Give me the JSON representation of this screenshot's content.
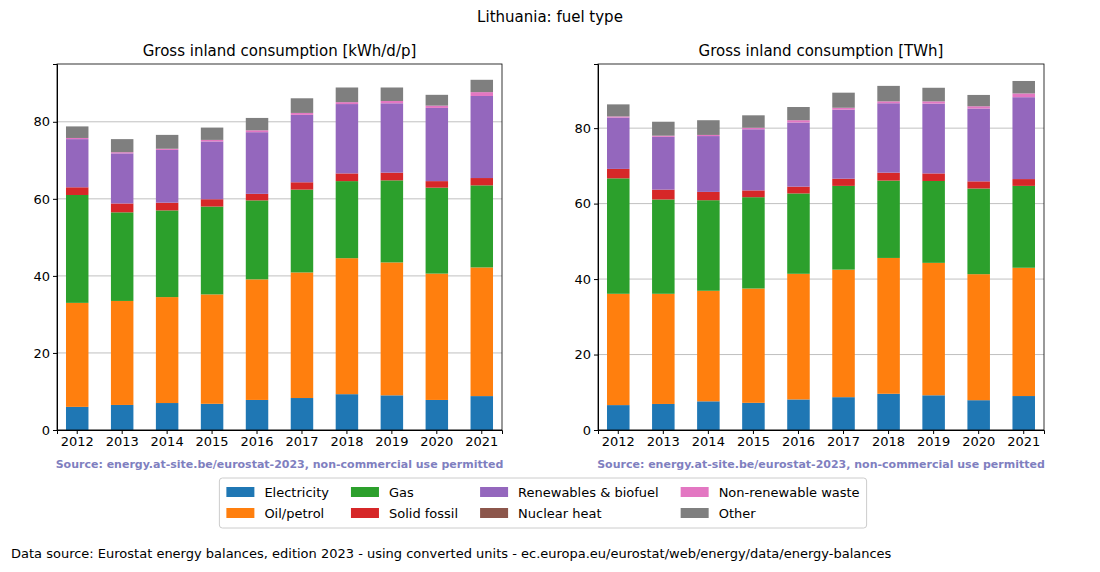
{
  "title": "Lithuania: fuel type",
  "caption": "Data source: Eurostat energy balances, edition 2023 - using converted units - ec.europa.eu/eurostat/web/energy/data/energy-balances",
  "chart_data": [
    {
      "type": "bar",
      "stacked": true,
      "grid": true,
      "legend": "bottom",
      "title": "Gross inland consumption [kWh/d/p]",
      "annotations": [
        "Source: energy.at-site.be/eurostat-2023, non-commercial use permitted"
      ],
      "categories": [
        "2012",
        "2013",
        "2014",
        "2015",
        "2016",
        "2017",
        "2018",
        "2019",
        "2020",
        "2021"
      ],
      "ylim": [
        0,
        95
      ],
      "yticks": [
        0,
        20,
        40,
        60,
        80
      ],
      "series": [
        {
          "name": "Electricity",
          "color": "#1f77b4",
          "values": [
            6,
            6.5,
            7,
            6.8,
            7.8,
            8.3,
            9.3,
            9,
            7.8,
            8.8
          ]
        },
        {
          "name": "Oil/petrol",
          "color": "#ff7f0e",
          "values": [
            27,
            27,
            27.5,
            28.4,
            31.3,
            32.6,
            35.3,
            34.5,
            32.8,
            33.4
          ]
        },
        {
          "name": "Gas",
          "color": "#2ca02c",
          "values": [
            28,
            23,
            22.5,
            22.8,
            20.5,
            21.5,
            20,
            21.3,
            22.3,
            21.3
          ]
        },
        {
          "name": "Solid fossil",
          "color": "#d62728",
          "values": [
            2,
            2.3,
            2,
            1.9,
            1.7,
            1.9,
            2,
            2,
            1.7,
            1.9
          ]
        },
        {
          "name": "Renewables & biofuel",
          "color": "#9467bd",
          "values": [
            12.5,
            13,
            13.7,
            15,
            16,
            17.5,
            18,
            18,
            19,
            21.3
          ]
        },
        {
          "name": "Nuclear heat",
          "color": "#8c564b",
          "values": [
            0,
            0,
            0,
            0,
            0,
            0,
            0,
            0,
            0,
            0
          ]
        },
        {
          "name": "Non-renewable waste",
          "color": "#e377c2",
          "values": [
            0.3,
            0.3,
            0.3,
            0.4,
            0.5,
            0.5,
            0.5,
            0.6,
            0.6,
            1
          ]
        },
        {
          "name": "Other",
          "color": "#7f7f7f",
          "values": [
            3,
            3.4,
            3.6,
            3.2,
            3.2,
            3.8,
            3.8,
            3.5,
            2.8,
            3.2
          ]
        }
      ]
    },
    {
      "type": "bar",
      "stacked": true,
      "grid": true,
      "title": "Gross inland consumption [TWh]",
      "annotations": [
        "Source: energy.at-site.be/eurostat-2023, non-commercial use permitted"
      ],
      "categories": [
        "2012",
        "2013",
        "2014",
        "2015",
        "2016",
        "2017",
        "2018",
        "2019",
        "2020",
        "2021"
      ],
      "ylim": [
        0,
        97
      ],
      "yticks": [
        0,
        20,
        40,
        60,
        80
      ],
      "series": [
        {
          "name": "Electricity",
          "color": "#1f77b4",
          "values": [
            6.6,
            6.9,
            7.6,
            7.2,
            8.1,
            8.7,
            9.6,
            9.2,
            7.9,
            9
          ]
        },
        {
          "name": "Oil/petrol",
          "color": "#ff7f0e",
          "values": [
            29.5,
            29.2,
            29.3,
            30.3,
            33.3,
            33.8,
            36,
            35.1,
            33.4,
            34
          ]
        },
        {
          "name": "Gas",
          "color": "#2ca02c",
          "values": [
            30.6,
            25,
            24,
            24.2,
            21.3,
            22.2,
            20.5,
            21.7,
            22.7,
            21.7
          ]
        },
        {
          "name": "Solid fossil",
          "color": "#d62728",
          "values": [
            2.5,
            2.6,
            2.2,
            1.8,
            1.8,
            1.9,
            2.1,
            2,
            1.9,
            1.8
          ]
        },
        {
          "name": "Renewables & biofuel",
          "color": "#9467bd",
          "values": [
            13.6,
            14,
            14.8,
            16.2,
            17,
            18.3,
            18.4,
            18.5,
            19.3,
            21.7
          ]
        },
        {
          "name": "Nuclear heat",
          "color": "#8c564b",
          "values": [
            0,
            0,
            0,
            0,
            0,
            0,
            0,
            0,
            0,
            0
          ]
        },
        {
          "name": "Non-renewable waste",
          "color": "#e377c2",
          "values": [
            0.3,
            0.3,
            0.3,
            0.4,
            0.6,
            0.5,
            0.5,
            0.6,
            0.6,
            1
          ]
        },
        {
          "name": "Other",
          "color": "#7f7f7f",
          "values": [
            3.2,
            3.7,
            3.9,
            3.3,
            3.5,
            4,
            4.1,
            3.6,
            3,
            3.3
          ]
        }
      ]
    }
  ]
}
